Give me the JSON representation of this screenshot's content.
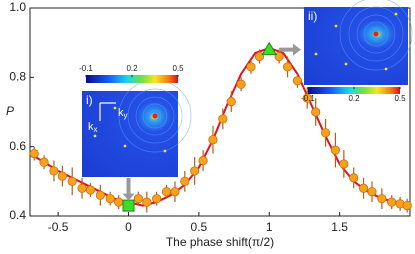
{
  "chart_data": {
    "type": "scatter",
    "xlabel": "The phase shift(π/2)",
    "ylabel": "P",
    "xlim": [
      -0.7,
      2.0
    ],
    "ylim": [
      0.4,
      1.0
    ],
    "xticks": [
      -0.5,
      0,
      0.5,
      1,
      1.5
    ],
    "yticks": [
      0.4,
      0.6,
      0.8,
      {
        "value": 1,
        "label": "1.0"
      }
    ],
    "series": [
      {
        "color": "#f7a21b",
        "x": [
          -0.67,
          -0.6,
          -0.53,
          -0.47,
          -0.4,
          -0.33,
          -0.27,
          -0.2,
          -0.13,
          -0.07,
          0.07,
          0.13,
          0.2,
          0.27,
          0.33,
          0.4,
          0.47,
          0.53,
          0.6,
          0.67,
          0.73,
          0.8,
          0.87,
          0.93,
          1.07,
          1.13,
          1.2,
          1.27,
          1.33,
          1.4,
          1.47,
          1.53,
          1.6,
          1.67,
          1.73,
          1.8,
          1.87,
          1.93,
          1.98
        ],
        "values": [
          0.58,
          0.555,
          0.53,
          0.515,
          0.5,
          0.48,
          0.475,
          0.46,
          0.45,
          0.44,
          0.45,
          0.44,
          0.45,
          0.47,
          0.47,
          0.5,
          0.53,
          0.56,
          0.62,
          0.68,
          0.73,
          0.78,
          0.83,
          0.86,
          0.86,
          0.83,
          0.79,
          0.74,
          0.7,
          0.64,
          0.59,
          0.55,
          0.51,
          0.48,
          0.47,
          0.45,
          0.44,
          0.435,
          0.43
        ],
        "errors": [
          0.02,
          0.02,
          0.03,
          0.03,
          0.04,
          0.03,
          0.02,
          0.03,
          0.02,
          0.02,
          0.02,
          0.03,
          0.02,
          0.02,
          0.03,
          0.03,
          0.04,
          0.03,
          0.04,
          0.03,
          0.03,
          0.02,
          0.02,
          0.02,
          0.02,
          0.03,
          0.02,
          0.03,
          0.04,
          0.04,
          0.05,
          0.04,
          0.03,
          0.03,
          0.03,
          0.03,
          0.02,
          0.02,
          0.02
        ]
      }
    ],
    "fit": {
      "color": "#e3121b",
      "x": [
        -0.7,
        -0.5,
        -0.3,
        -0.1,
        0,
        0.1,
        0.2,
        0.3,
        0.4,
        0.5,
        0.6,
        0.7,
        0.8,
        0.9,
        1.0,
        1.1,
        1.2,
        1.3,
        1.4,
        1.5,
        1.6,
        1.7,
        1.8,
        1.9,
        2.0
      ],
      "values": [
        0.58,
        0.53,
        0.49,
        0.45,
        0.44,
        0.43,
        0.44,
        0.46,
        0.49,
        0.54,
        0.62,
        0.72,
        0.81,
        0.87,
        0.885,
        0.87,
        0.81,
        0.72,
        0.63,
        0.55,
        0.5,
        0.47,
        0.45,
        0.44,
        0.43
      ]
    },
    "markers": [
      {
        "shape": "square",
        "color": "#3ddc2a",
        "x": 0,
        "y": 0.43
      },
      {
        "shape": "triangle",
        "color": "#3ddc2a",
        "x": 1,
        "y": 0.88
      }
    ],
    "insets": [
      {
        "label": "i)",
        "clim": [
          -0.1,
          0.5
        ],
        "cticks": [
          -0.1,
          0.2,
          0.5
        ],
        "axis_labels": [
          {
            "text": "k",
            "sub": "x"
          },
          {
            "text": "k",
            "sub": "y"
          }
        ]
      },
      {
        "label": "ii)",
        "clim": [
          -0.1,
          0.5
        ],
        "cticks": [
          -0.1,
          0.2,
          0.5
        ]
      }
    ]
  }
}
